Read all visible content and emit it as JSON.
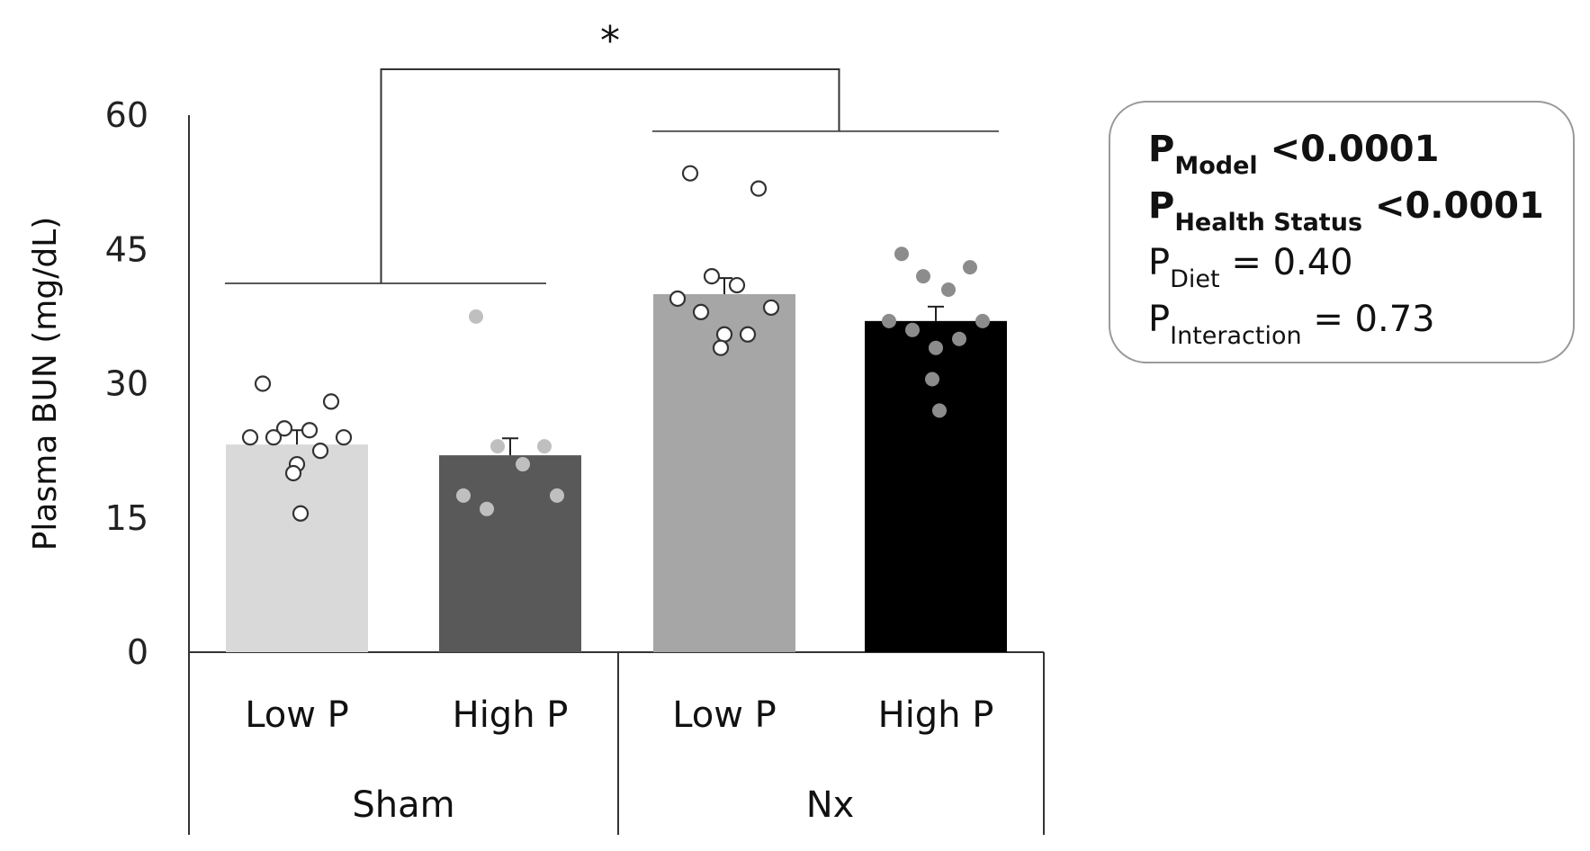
{
  "chart_data": {
    "type": "bar",
    "ylabel": "Plasma BUN (mg/dL)",
    "ylim": [
      0,
      60
    ],
    "yticks": [
      "0",
      "15",
      "30",
      "45",
      "60"
    ],
    "groups": [
      {
        "name": "Sham",
        "categories": [
          "Low P",
          "High P"
        ]
      },
      {
        "name": "Nx",
        "categories": [
          "Low P",
          "High P"
        ]
      }
    ],
    "bars": [
      {
        "group": "Sham",
        "diet": "Low P",
        "value": 23.2,
        "error": 1.6,
        "color": "#d9d9d9",
        "points": [
          30.0,
          28.0,
          25.0,
          24.8,
          24.0,
          24.0,
          24.0,
          22.5,
          21.0,
          20.0,
          15.5
        ],
        "marker": "open"
      },
      {
        "group": "Sham",
        "diet": "High P",
        "value": 22.0,
        "error": 1.9,
        "color": "#595959",
        "points": [
          37.5,
          23.0,
          23.0,
          21.0,
          17.5,
          17.5,
          16.0
        ],
        "marker": "filled-light"
      },
      {
        "group": "Nx",
        "diet": "Low P",
        "value": 40.0,
        "error": 1.8,
        "color": "#a6a6a6",
        "points": [
          53.5,
          51.8,
          42.0,
          41.0,
          39.5,
          38.5,
          38.0,
          35.5,
          35.5,
          34.0
        ],
        "marker": "open"
      },
      {
        "group": "Nx",
        "diet": "High P",
        "value": 37.0,
        "error": 1.6,
        "color": "#000000",
        "points": [
          44.5,
          43.0,
          42.0,
          40.5,
          37.0,
          37.0,
          36.0,
          35.0,
          34.0,
          30.5,
          27.0
        ],
        "marker": "filled-gray"
      }
    ],
    "annotation": "*",
    "legend": "none"
  },
  "stats": [
    {
      "p": "P",
      "sub": "Model",
      "rel": " <0.0001",
      "bold": true
    },
    {
      "p": "P",
      "sub": "Health Status",
      "rel": " <0.0001",
      "bold": true
    },
    {
      "p": "P",
      "sub": "Diet",
      "rel": " = 0.40",
      "bold": false
    },
    {
      "p": "P",
      "sub": "Interaction",
      "rel": " = 0.73",
      "bold": false
    }
  ]
}
